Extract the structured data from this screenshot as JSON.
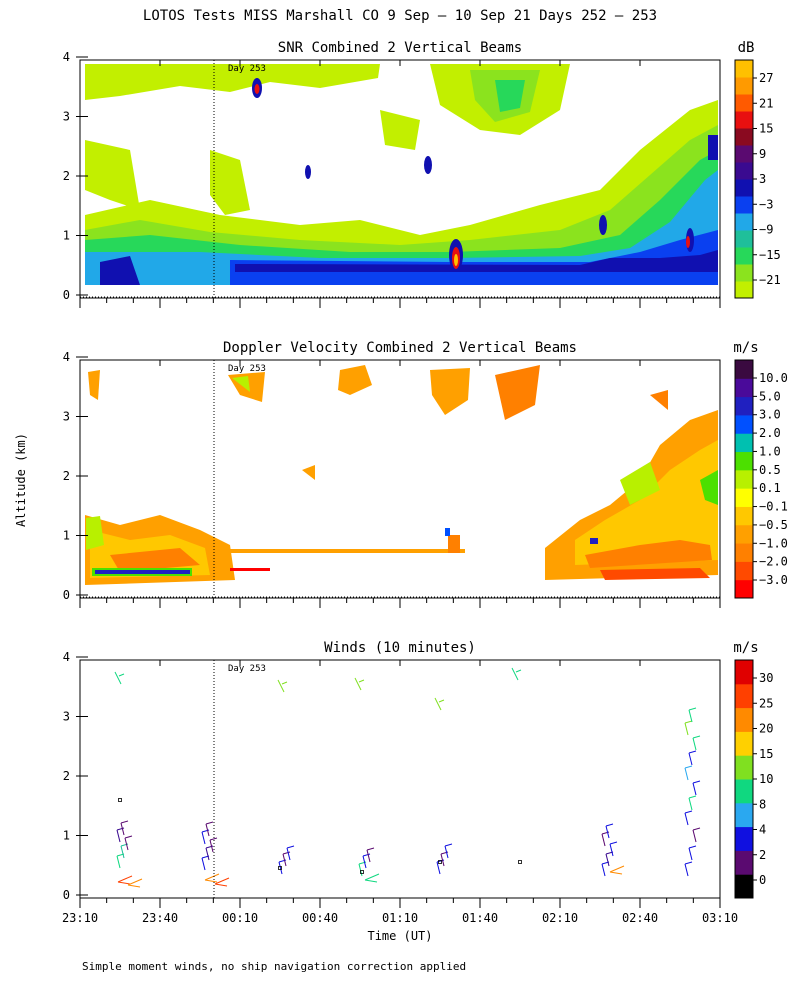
{
  "figure": {
    "title": "LOTOS Tests MISS Marshall CO   9 Sep – 10 Sep 21 Days 252 – 253",
    "ylabel": "Altitude (km)",
    "xlabel": "Time (UT)",
    "footnote": "Simple moment winds, no ship navigation correction applied"
  },
  "chart_data": [
    {
      "type": "heatmap",
      "title": "SNR Combined 2 Vertical Beams",
      "colorbar_unit": "dB",
      "colorbar_ticks": [
        "27",
        "21",
        "15",
        "9",
        "3",
        "−3",
        "−9",
        "−15",
        "−21"
      ],
      "colorbar_colors": [
        "#c2ef00",
        "#8be31e",
        "#27d85a",
        "#1fbf9a",
        "#21a8e8",
        "#0a40f0",
        "#1010b0",
        "#3a0a90",
        "#5a0a70",
        "#8a0a20",
        "#e81010",
        "#ff5a00",
        "#ff9a00",
        "#ffc000"
      ],
      "y_ticks": [
        0,
        1,
        2,
        3,
        4
      ],
      "ylim": [
        0,
        4
      ],
      "annotation": "Day 253",
      "features": [
        {
          "desc": "noisy surface layer",
          "altitude_km": [
            0.2,
            1.1
          ],
          "snr_db": [
            -21,
            -3
          ]
        },
        {
          "desc": "strong layer",
          "altitude_km": 0.5,
          "time": "00:00–02:30",
          "snr_db": -3
        },
        {
          "desc": "spots",
          "snr_db": 27
        }
      ]
    },
    {
      "type": "heatmap",
      "title": "Doppler Velocity Combined 2 Vertical Beams",
      "colorbar_unit": "m/s",
      "colorbar_ticks": [
        "10.0",
        "5.0",
        "3.0",
        "2.0",
        "1.0",
        "0.5",
        "0.1",
        "−0.1",
        "−0.5",
        "−1.0",
        "−2.0",
        "−3.0"
      ],
      "colorbar_colors": [
        "#ff0000",
        "#ff4a00",
        "#ff8000",
        "#ffa000",
        "#ffc800",
        "#ffff00",
        "#b8f000",
        "#4ce000",
        "#00c0b0",
        "#0050ff",
        "#2020c0",
        "#4a0a9a",
        "#3a0a40"
      ],
      "y_ticks": [
        0,
        1,
        2,
        3,
        4
      ],
      "ylim": [
        0,
        4
      ],
      "annotation": "Day 253"
    },
    {
      "type": "scatter",
      "title": "Winds (10 minutes)",
      "colorbar_unit": "m/s",
      "colorbar_ticks": [
        "30",
        "25",
        "20",
        "15",
        "10",
        "8",
        "4",
        "2",
        "0"
      ],
      "colorbar_colors": [
        "#000000",
        "#5a0a70",
        "#1010e0",
        "#2aa8f0",
        "#10d880",
        "#80e020",
        "#ffd000",
        "#ff8a00",
        "#ff4000",
        "#e00000"
      ],
      "y_ticks": [
        0,
        1,
        2,
        3,
        4
      ],
      "ylim": [
        0,
        4
      ],
      "annotation": "Day 253",
      "x_ticks": [
        "23:10",
        "23:40",
        "00:10",
        "00:40",
        "01:10",
        "01:40",
        "02:10",
        "02:40",
        "03:10"
      ]
    }
  ]
}
